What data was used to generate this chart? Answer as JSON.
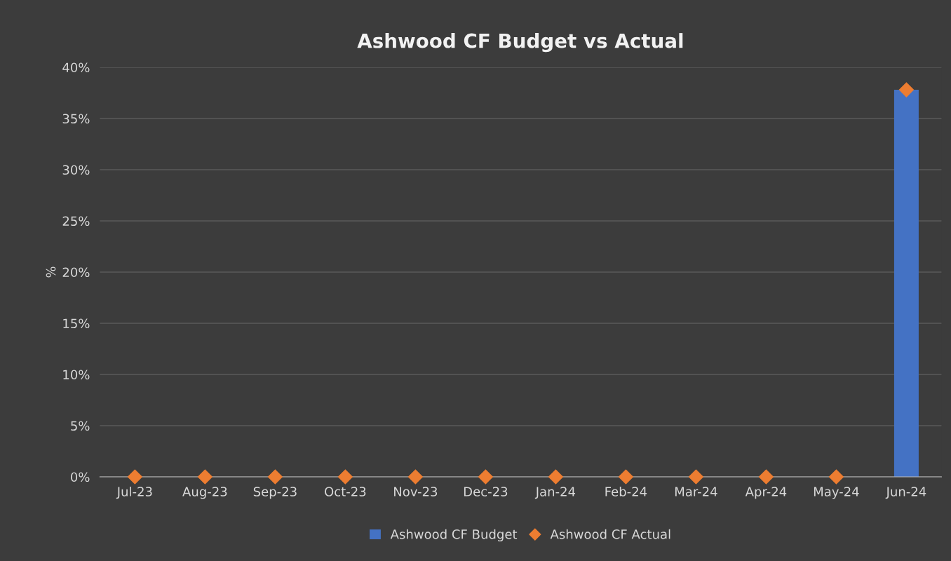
{
  "chart_data": {
    "type": "bar",
    "title": "Ashwood CF Budget vs Actual",
    "ylabel": "%",
    "categories": [
      "Jul-23",
      "Aug-23",
      "Sep-23",
      "Oct-23",
      "Nov-23",
      "Dec-23",
      "Jan-24",
      "Feb-24",
      "Mar-24",
      "Apr-24",
      "May-24",
      "Jun-24"
    ],
    "series": [
      {
        "name": "Ashwood CF Budget",
        "color": "#4472c4",
        "values": [
          0,
          0,
          0,
          0,
          0,
          0,
          0,
          0,
          0,
          0,
          0,
          37.8
        ]
      },
      {
        "name": "Ashwood CF Actual",
        "type": "scatter",
        "color": "#ed7d31",
        "marker": "diamond",
        "values": [
          0,
          0,
          0,
          0,
          0,
          0,
          0,
          0,
          0,
          0,
          0,
          37.8
        ]
      }
    ],
    "ylim": [
      0,
      40
    ],
    "yticks": [
      {
        "value": 0,
        "label": "0%"
      },
      {
        "value": 5,
        "label": "5%"
      },
      {
        "value": 10,
        "label": "10%"
      },
      {
        "value": 15,
        "label": "15%"
      },
      {
        "value": 20,
        "label": "20%"
      },
      {
        "value": 25,
        "label": "25%"
      },
      {
        "value": 30,
        "label": "30%"
      },
      {
        "value": 35,
        "label": "35%"
      },
      {
        "value": 40,
        "label": "40%"
      }
    ],
    "grid": "y",
    "legend": "bottom"
  }
}
